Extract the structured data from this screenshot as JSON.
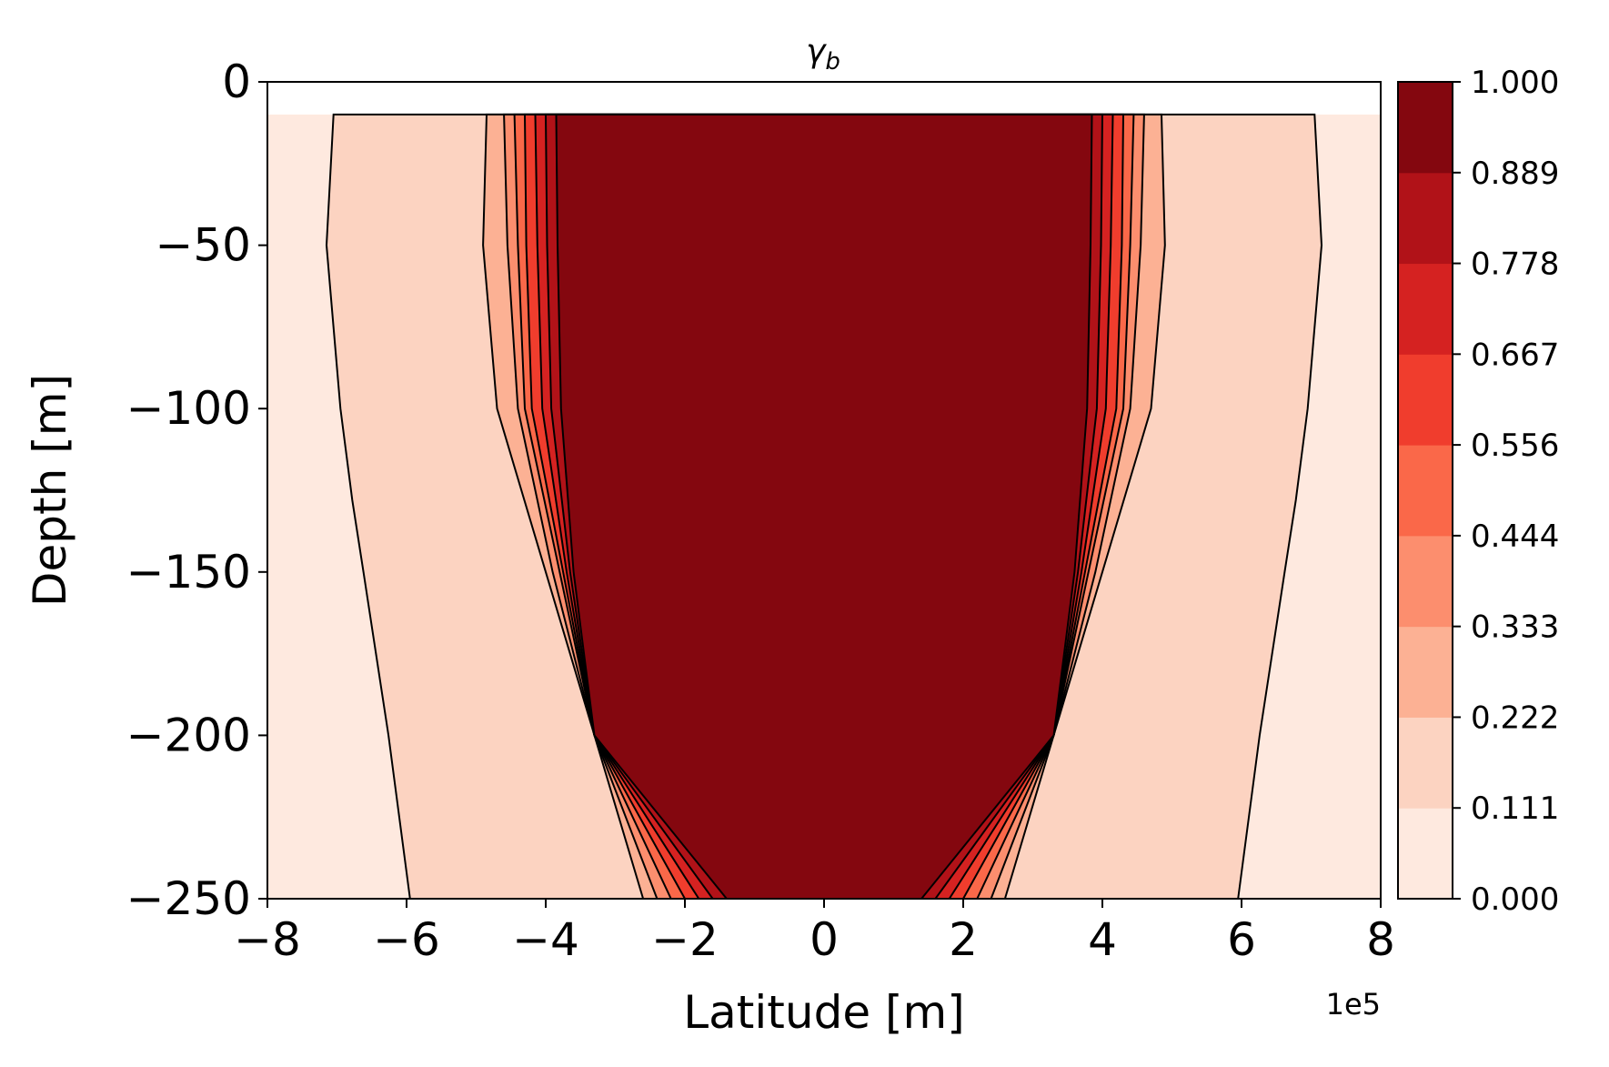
{
  "chart_data": {
    "type": "heatmap",
    "subtype": "filled-contour",
    "title": "γ",
    "title_subscript": "b",
    "xlabel": "Latitude [m]",
    "ylabel": "Depth [m]",
    "x_offset_label": "1e5",
    "xlim": [
      -800000,
      800000
    ],
    "ylim": [
      -250,
      0
    ],
    "x_tick_values": [
      -800000,
      -600000,
      -400000,
      -200000,
      0,
      200000,
      400000,
      600000,
      800000
    ],
    "x_tick_labels": [
      "−8",
      "−6",
      "−4",
      "−2",
      "0",
      "2",
      "4",
      "6",
      "8"
    ],
    "y_tick_values": [
      0,
      -50,
      -100,
      -150,
      -200,
      -250
    ],
    "y_tick_labels": [
      "0",
      "−50",
      "−100",
      "−150",
      "−200",
      "−250"
    ],
    "colorbar": {
      "levels": [
        0.0,
        0.111,
        0.222,
        0.333,
        0.444,
        0.556,
        0.667,
        0.778,
        0.889,
        1.0
      ],
      "labels": [
        "0.000",
        "0.111",
        "0.222",
        "0.333",
        "0.444",
        "0.556",
        "0.667",
        "0.778",
        "0.889",
        "1.000"
      ],
      "colors": [
        "#fee9df",
        "#fcd3c1",
        "#fcb194",
        "#fc8e6e",
        "#fa6849",
        "#f03d2d",
        "#d52221",
        "#b11218",
        "#84070f"
      ]
    },
    "data_extent_depth": [
      -250,
      -10
    ],
    "grid": false,
    "symmetric_about_x": 0,
    "region_profiles_right_half": [
      {
        "level": 1,
        "depth": [
          -10,
          -50,
          -100,
          -128,
          -150,
          -200,
          -250
        ],
        "lat": [
          705000,
          715000,
          695000,
          678000,
          662000,
          626000,
          595000
        ]
      },
      {
        "level": 2,
        "depth": [
          -10,
          -50,
          -100,
          -150,
          -200,
          -250
        ],
        "lat": [
          485000,
          490000,
          470000,
          400000,
          330000,
          260000
        ]
      },
      {
        "level": 3,
        "depth": [
          -10,
          -50,
          -100,
          -150,
          -200,
          -250
        ],
        "lat": [
          460000,
          455000,
          440000,
          390000,
          330000,
          240000
        ]
      },
      {
        "level": 4,
        "depth": [
          -10,
          -50,
          -100,
          -150,
          -200,
          -250
        ],
        "lat": [
          445000,
          440000,
          430000,
          380000,
          330000,
          220000
        ]
      },
      {
        "level": 5,
        "depth": [
          -10,
          -50,
          -100,
          -150,
          -200,
          -250
        ],
        "lat": [
          430000,
          428000,
          420000,
          375000,
          330000,
          200000
        ]
      },
      {
        "level": 6,
        "depth": [
          -10,
          -50,
          -100,
          -150,
          -200,
          -250
        ],
        "lat": [
          415000,
          412000,
          405000,
          370000,
          330000,
          180000
        ]
      },
      {
        "level": 7,
        "depth": [
          -10,
          -50,
          -100,
          -150,
          -200,
          -250
        ],
        "lat": [
          400000,
          398000,
          392000,
          365000,
          330000,
          160000
        ]
      },
      {
        "level": 8,
        "depth": [
          -10,
          -50,
          -100,
          -150,
          -200,
          -250
        ],
        "lat": [
          385000,
          383000,
          378000,
          360000,
          330000,
          140000
        ]
      }
    ]
  }
}
